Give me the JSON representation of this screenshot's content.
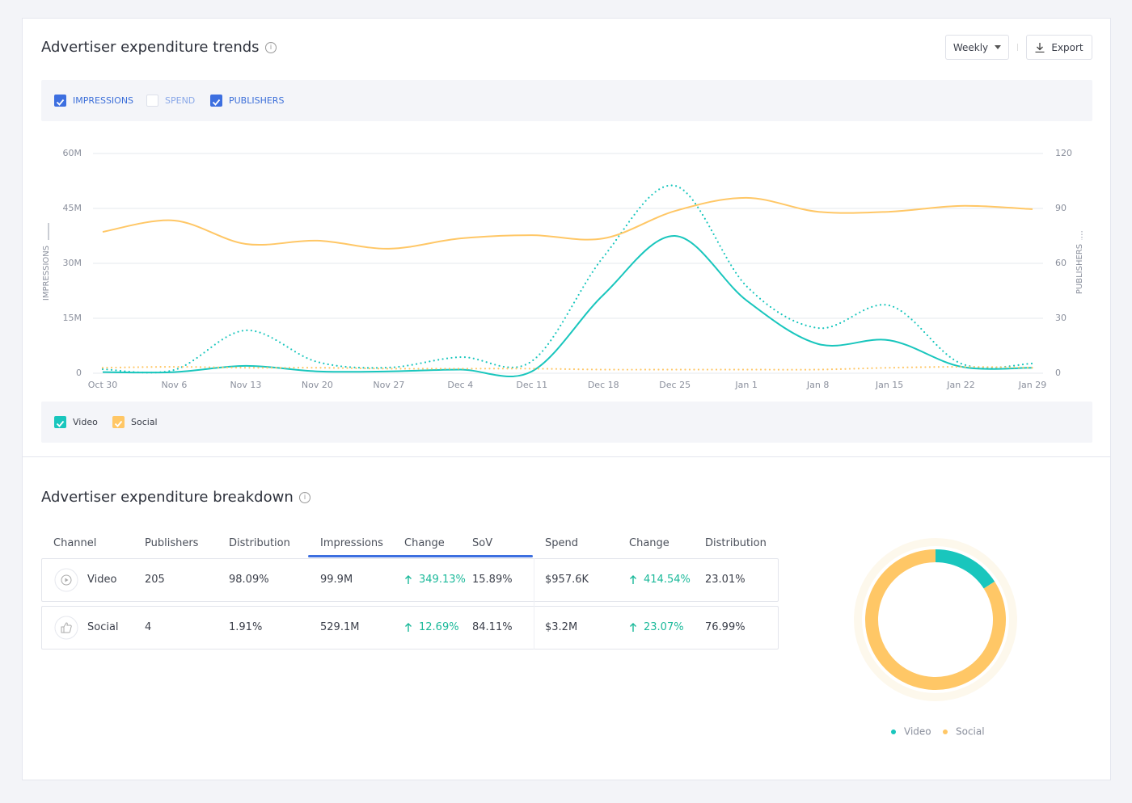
{
  "header": {
    "title": "Advertiser expenditure trends",
    "period": "Weekly",
    "export": "Export"
  },
  "metrics": [
    {
      "label": "IMPRESSIONS",
      "checked": true
    },
    {
      "label": "SPEND",
      "checked": false
    },
    {
      "label": "PUBLISHERS",
      "checked": true
    }
  ],
  "chart_data": [
    {
      "type": "line",
      "x": [
        "Oct 30",
        "Nov 6",
        "Nov 13",
        "Nov 20",
        "Nov 27",
        "Dec 4",
        "Dec 11",
        "Dec 18",
        "Dec 25",
        "Jan 1",
        "Jan 8",
        "Jan 15",
        "Jan 22",
        "Jan 29"
      ],
      "ylabel": "IMPRESSIONS",
      "y2label": "PUBLISHERS",
      "ylim": [
        0,
        60000000
      ],
      "yticks": [
        0,
        {
          "value": 15000000,
          "label": "15M"
        },
        {
          "value": 30000000,
          "label": "30M"
        },
        {
          "value": 45000000,
          "label": "45M"
        },
        {
          "value": 60000000,
          "label": "60M"
        }
      ],
      "y2lim": [
        0,
        120
      ],
      "y2ticks": [
        0,
        30,
        60,
        90,
        120
      ],
      "grid": true,
      "series": [
        {
          "name": "Video",
          "color": "#19c6bd",
          "checked": true,
          "values": [
            300000,
            300000,
            2000000,
            500000,
            500000,
            1000000,
            500000,
            21400000,
            37500000,
            19900000,
            8000000,
            9000000,
            1800000,
            1500000
          ],
          "y2_values": [
            2.2,
            1.8,
            23.4,
            6.2,
            3.1,
            8.8,
            6.6,
            63.5,
            102.4,
            47.6,
            24.7,
            37,
            5.3,
            5.3
          ]
        },
        {
          "name": "Social",
          "color": "#ffc766",
          "checked": true,
          "values": [
            38600000,
            41700000,
            35300000,
            36200000,
            34000000,
            36800000,
            37700000,
            36800000,
            44300000,
            47900000,
            44100000,
            44100000,
            45700000,
            44800000
          ],
          "y2_values": [
            3,
            3.5,
            3,
            3,
            2.5,
            2.5,
            2.5,
            2,
            2,
            2,
            2,
            3,
            3.5,
            3
          ]
        }
      ]
    },
    {
      "type": "pie",
      "categories": [
        "Video",
        "Social"
      ],
      "values": [
        15.89,
        84.11
      ],
      "colors": [
        "#19c6bd",
        "#ffc766"
      ]
    }
  ],
  "breakdown": {
    "title": "Advertiser expenditure breakdown",
    "columns": [
      "Channel",
      "Publishers",
      "Distribution",
      "Impressions",
      "Change",
      "SoV",
      "Spend",
      "Change",
      "Distribution"
    ],
    "rows": [
      [
        "Video",
        "205",
        "98.09%",
        "99.9M",
        "349.13%",
        "15.89%",
        "$957.6K",
        "414.54%",
        "23.01%"
      ],
      [
        "Social",
        "4",
        "1.91%",
        "529.1M",
        "12.69%",
        "84.11%",
        "$3.2M",
        "23.07%",
        "76.99%"
      ]
    ]
  }
}
